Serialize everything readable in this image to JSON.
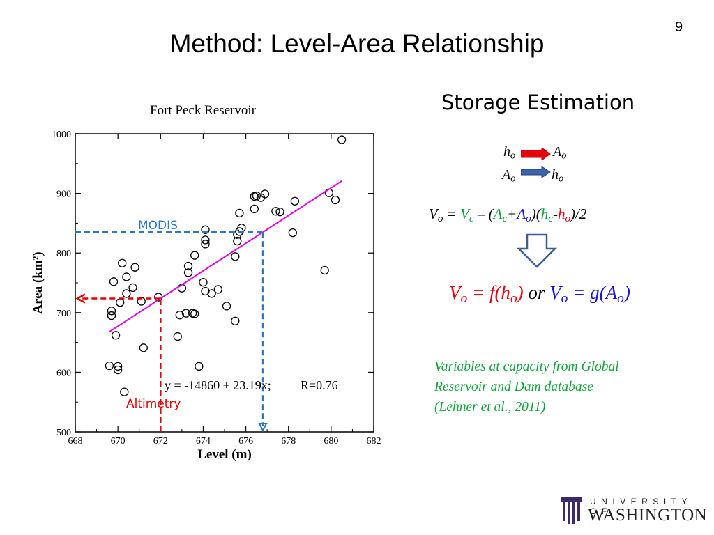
{
  "slide": {
    "title": "Method: Level-Area Relationship",
    "number": "9"
  },
  "storage": {
    "title": "Storage Estimation",
    "map1_left": "h",
    "map1_left_sub": "o",
    "map1_right": "A",
    "map1_right_sub": "o",
    "map2_left": "A",
    "map2_left_sub": "o",
    "map2_right": "h",
    "map2_right_sub": "o",
    "arrow1_color": "#e8000d",
    "arrow2_color": "#3a64a8"
  },
  "equations": {
    "main": {
      "V": "V",
      "o1": "o",
      "eq": " = ",
      "Vc": "V",
      "c1": "c",
      "minus": " – (",
      "Ac": "A",
      "c2": "c",
      "plus": "+",
      "Ao": "A",
      "o2": "o",
      "mid": ")(",
      "hc": "h",
      "c3": "c",
      "dash": "-",
      "ho": "h",
      "o3": "o",
      "end": ")/2"
    },
    "big": {
      "left": "V",
      "left_sub": "o",
      "left_rest": " = f(h",
      "left_sub2": "o",
      "left_close": ")",
      "or": " or ",
      "right": "V",
      "right_sub": "o",
      "right_rest": " = ",
      "right_g": "g(A",
      "right_sub2": "o",
      "right_close": ")"
    }
  },
  "note": {
    "line1": "Variables at capacity from Global",
    "line2": "Reservoir and Dam database",
    "line3": "(Lehner et al., 2011)"
  },
  "logo": {
    "university": "UNIVERSITY OF",
    "washington": "WASHINGTON",
    "color": "#3b2a6b"
  },
  "colors": {
    "fit_line": "#e600e6",
    "modis": "#2f78c0",
    "altimetry": "#e00000"
  },
  "chart_data": {
    "type": "scatter",
    "title": "Fort Peck Reservoir",
    "xlabel": "Level (m)",
    "ylabel": "Area (km²)",
    "xlim": [
      668,
      682
    ],
    "ylim": [
      500,
      1000
    ],
    "xticks": [
      "668",
      "670",
      "672",
      "674",
      "676",
      "678",
      "680",
      "682"
    ],
    "yticks": [
      "500",
      "600",
      "700",
      "800",
      "900",
      "1000"
    ],
    "grid": false,
    "points": [
      [
        669.6,
        611
      ],
      [
        669.7,
        695
      ],
      [
        669.8,
        752
      ],
      [
        669.9,
        662
      ],
      [
        670.0,
        604
      ],
      [
        670.0,
        610
      ],
      [
        670.1,
        717
      ],
      [
        670.2,
        783
      ],
      [
        670.3,
        567
      ],
      [
        670.4,
        732
      ],
      [
        670.4,
        760
      ],
      [
        670.7,
        742
      ],
      [
        670.8,
        776
      ],
      [
        671.1,
        719
      ],
      [
        671.2,
        641
      ],
      [
        671.9,
        726
      ],
      [
        672.8,
        660
      ],
      [
        672.9,
        696
      ],
      [
        673.0,
        741
      ],
      [
        673.2,
        699
      ],
      [
        673.3,
        767
      ],
      [
        673.3,
        778
      ],
      [
        673.5,
        699
      ],
      [
        673.6,
        796
      ],
      [
        673.6,
        698
      ],
      [
        673.8,
        610
      ],
      [
        674.0,
        751
      ],
      [
        674.1,
        736
      ],
      [
        674.1,
        839
      ],
      [
        674.1,
        815
      ],
      [
        674.1,
        822
      ],
      [
        674.4,
        732
      ],
      [
        674.7,
        739
      ],
      [
        675.1,
        711
      ],
      [
        675.5,
        686
      ],
      [
        675.5,
        794
      ],
      [
        675.6,
        820
      ],
      [
        675.6,
        831
      ],
      [
        675.7,
        867
      ],
      [
        675.7,
        836
      ],
      [
        675.8,
        842
      ],
      [
        676.4,
        895
      ],
      [
        676.4,
        874
      ],
      [
        676.5,
        896
      ],
      [
        676.7,
        893
      ],
      [
        676.9,
        899
      ],
      [
        677.4,
        870
      ],
      [
        677.6,
        869
      ],
      [
        678.2,
        834
      ],
      [
        678.3,
        887
      ],
      [
        679.7,
        771
      ],
      [
        679.9,
        901
      ],
      [
        680.2,
        889
      ],
      [
        680.5,
        990
      ],
      [
        669.7,
        703
      ]
    ],
    "fit": {
      "intercept": -14860,
      "slope": 23.19,
      "x_range": [
        669.6,
        680.5
      ]
    },
    "annotations": {
      "equation": "y = -14860 + 23.19x;",
      "r": "R=0.76",
      "modis": "MODIS",
      "altimetry": "Altimetry"
    }
  }
}
